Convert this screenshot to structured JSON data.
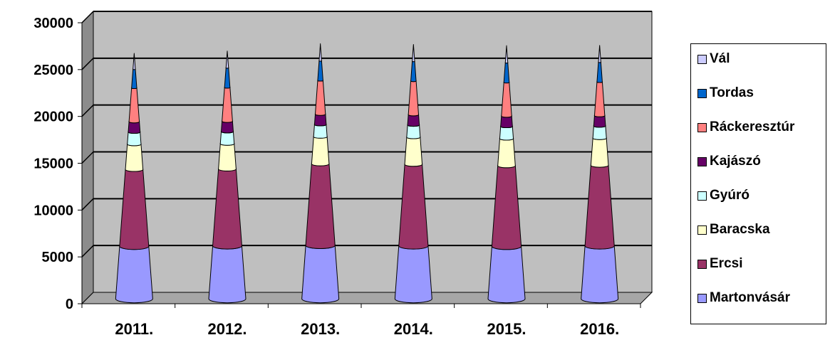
{
  "chart_data": {
    "type": "bar",
    "bar_shape": "cone",
    "stacked": true,
    "title": "",
    "xlabel": "",
    "ylabel": "",
    "ylim": [
      0,
      30000
    ],
    "yticks": [
      0,
      5000,
      10000,
      15000,
      20000,
      25000,
      30000
    ],
    "grid": true,
    "legend_position": "right",
    "categories": [
      "2011.",
      "2012.",
      "2013.",
      "2014.",
      "2015.",
      "2016."
    ],
    "series": [
      {
        "name": "Martonvásár",
        "color": "#9999FF",
        "values": [
          5600,
          5650,
          5700,
          5650,
          5600,
          5650
        ]
      },
      {
        "name": "Ercsi",
        "color": "#993366",
        "values": [
          8200,
          8200,
          8700,
          8700,
          8600,
          8600
        ]
      },
      {
        "name": "Baracska",
        "color": "#FFFFCC",
        "values": [
          2700,
          2700,
          2900,
          2900,
          2900,
          2900
        ]
      },
      {
        "name": "Gyúró",
        "color": "#CCFFFF",
        "values": [
          1300,
          1300,
          1300,
          1300,
          1300,
          1300
        ]
      },
      {
        "name": "Kajászó",
        "color": "#660066",
        "values": [
          1100,
          1100,
          1100,
          1100,
          1100,
          1100
        ]
      },
      {
        "name": "Ráckeresztúr",
        "color": "#FF8080",
        "values": [
          3600,
          3600,
          3600,
          3600,
          3600,
          3600
        ]
      },
      {
        "name": "Tordas",
        "color": "#0066CC",
        "values": [
          2000,
          2100,
          2100,
          2100,
          2100,
          2100
        ]
      },
      {
        "name": "Vál",
        "color": "#CCCCFF",
        "values": [
          1700,
          1800,
          1800,
          1800,
          1800,
          1800
        ]
      }
    ]
  },
  "legend": {
    "items": [
      "Vál",
      "Tordas",
      "Ráckeresztúr",
      "Kajászó",
      "Gyúró",
      "Baracska",
      "Ercsi",
      "Martonvásár"
    ],
    "colors": [
      "#CCCCFF",
      "#0066CC",
      "#FF8080",
      "#660066",
      "#CCFFFF",
      "#FFFFCC",
      "#993366",
      "#9999FF"
    ]
  },
  "colors": {
    "plot_background": "#BFBFBF",
    "plot_wall_side": "#8C8C8C",
    "plot_floor": "#A6A6A6",
    "gridline": "#000000"
  }
}
